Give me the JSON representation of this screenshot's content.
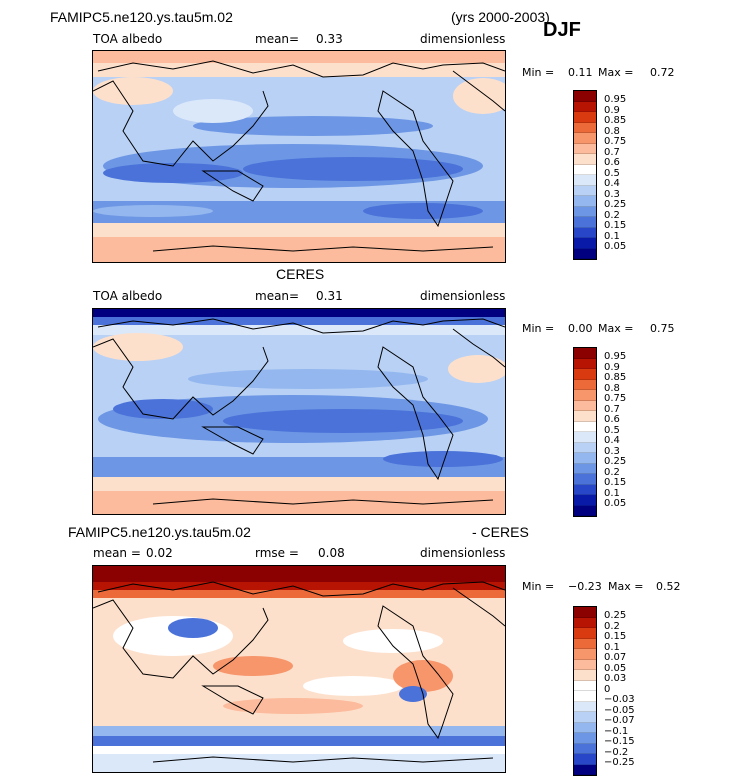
{
  "header": {
    "model": "FAMIPC5.ne120.ys.tau5m.02",
    "years": "(yrs 2000-2003)",
    "season": "DJF"
  },
  "panels": [
    {
      "title": "",
      "left": "TOA albedo",
      "mid_label": "mean=",
      "mid_value": "0.33",
      "right": "dimensionless",
      "min_label": "Min =",
      "min_value": "0.11",
      "max_label": "Max =",
      "max_value": "0.72",
      "levels": [
        "0.95",
        "0.9",
        "0.85",
        "0.8",
        "0.75",
        "0.7",
        "0.6",
        "0.5",
        "0.4",
        "0.3",
        "0.25",
        "0.2",
        "0.15",
        "0.1",
        "0.05"
      ]
    },
    {
      "title": "CERES",
      "left": "TOA albedo",
      "mid_label": "mean=",
      "mid_value": "0.31",
      "right": "dimensionless",
      "min_label": "Min =",
      "min_value": "0.00",
      "max_label": "Max =",
      "max_value": "0.75",
      "levels": [
        "0.95",
        "0.9",
        "0.85",
        "0.8",
        "0.75",
        "0.7",
        "0.6",
        "0.5",
        "0.4",
        "0.3",
        "0.25",
        "0.2",
        "0.15",
        "0.1",
        "0.05"
      ]
    },
    {
      "title_left": "FAMIPC5.ne120.ys.tau5m.02",
      "title_right": "- CERES",
      "mean_label": "mean =",
      "mean_value": "0.02",
      "rmse_label": "rmse =",
      "rmse_value": "0.08",
      "right": "dimensionless",
      "min_label": "Min =",
      "min_value": "−0.23",
      "max_label": "Max =",
      "max_value": "0.52",
      "levels": [
        "0.25",
        "0.2",
        "0.15",
        "0.1",
        "0.07",
        "0.05",
        "0.03",
        "0",
        "−0.03",
        "−0.05",
        "−0.07",
        "−0.1",
        "−0.15",
        "−0.2",
        "−0.25"
      ]
    }
  ],
  "colors": {
    "abs_scale": [
      "#8b0000",
      "#b81404",
      "#d93a10",
      "#ec6a3a",
      "#f7956b",
      "#fbbb9c",
      "#fde0cc",
      "#ffffff",
      "#dbe8fa",
      "#b9d1f5",
      "#93b7ee",
      "#6d97e4",
      "#4a72d9",
      "#2846c8",
      "#0a1aa8",
      "#000080"
    ],
    "diff_scale": [
      "#8b0000",
      "#b81404",
      "#d93a10",
      "#ec6a3a",
      "#f7956b",
      "#fbbb9c",
      "#fde0cc",
      "#ffffff",
      "#ffffff",
      "#dbe8fa",
      "#b9d1f5",
      "#93b7ee",
      "#6d97e4",
      "#4a72d9",
      "#2846c8",
      "#000080"
    ]
  }
}
